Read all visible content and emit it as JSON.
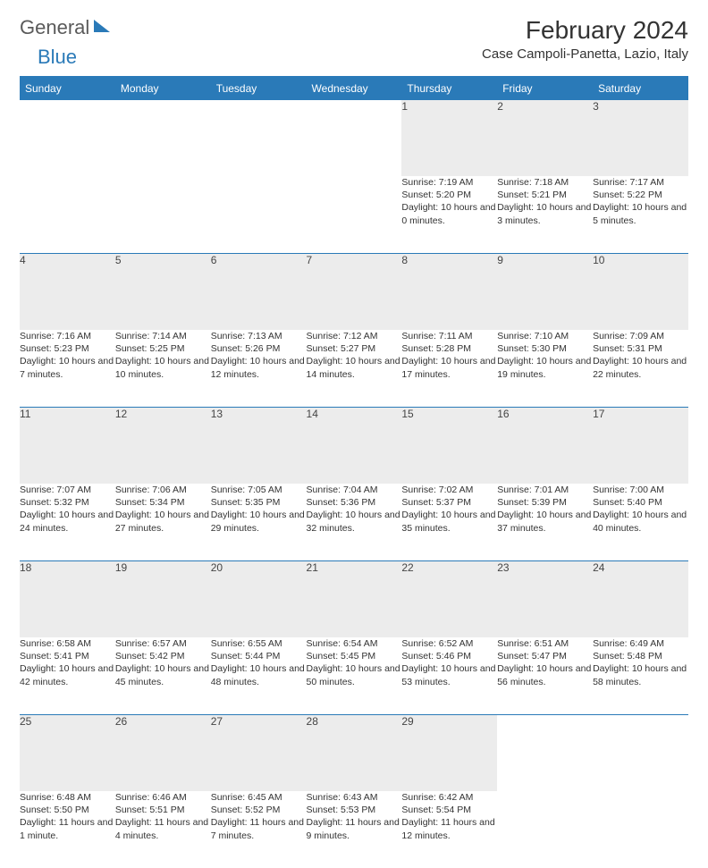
{
  "brand": {
    "part1": "General",
    "part2": "Blue"
  },
  "title": "February 2024",
  "location": "Case Campoli-Panetta, Lazio, Italy",
  "colors": {
    "accent": "#2a7ab8",
    "header_bg": "#2a7ab8",
    "header_text": "#ffffff",
    "daynum_bg": "#ececec",
    "text": "#333333",
    "background": "#ffffff"
  },
  "dow": [
    "Sunday",
    "Monday",
    "Tuesday",
    "Wednesday",
    "Thursday",
    "Friday",
    "Saturday"
  ],
  "weeks": [
    [
      null,
      null,
      null,
      null,
      {
        "n": "1",
        "sr": "7:19 AM",
        "ss": "5:20 PM",
        "dl": "10 hours and 0 minutes."
      },
      {
        "n": "2",
        "sr": "7:18 AM",
        "ss": "5:21 PM",
        "dl": "10 hours and 3 minutes."
      },
      {
        "n": "3",
        "sr": "7:17 AM",
        "ss": "5:22 PM",
        "dl": "10 hours and 5 minutes."
      }
    ],
    [
      {
        "n": "4",
        "sr": "7:16 AM",
        "ss": "5:23 PM",
        "dl": "10 hours and 7 minutes."
      },
      {
        "n": "5",
        "sr": "7:14 AM",
        "ss": "5:25 PM",
        "dl": "10 hours and 10 minutes."
      },
      {
        "n": "6",
        "sr": "7:13 AM",
        "ss": "5:26 PM",
        "dl": "10 hours and 12 minutes."
      },
      {
        "n": "7",
        "sr": "7:12 AM",
        "ss": "5:27 PM",
        "dl": "10 hours and 14 minutes."
      },
      {
        "n": "8",
        "sr": "7:11 AM",
        "ss": "5:28 PM",
        "dl": "10 hours and 17 minutes."
      },
      {
        "n": "9",
        "sr": "7:10 AM",
        "ss": "5:30 PM",
        "dl": "10 hours and 19 minutes."
      },
      {
        "n": "10",
        "sr": "7:09 AM",
        "ss": "5:31 PM",
        "dl": "10 hours and 22 minutes."
      }
    ],
    [
      {
        "n": "11",
        "sr": "7:07 AM",
        "ss": "5:32 PM",
        "dl": "10 hours and 24 minutes."
      },
      {
        "n": "12",
        "sr": "7:06 AM",
        "ss": "5:34 PM",
        "dl": "10 hours and 27 minutes."
      },
      {
        "n": "13",
        "sr": "7:05 AM",
        "ss": "5:35 PM",
        "dl": "10 hours and 29 minutes."
      },
      {
        "n": "14",
        "sr": "7:04 AM",
        "ss": "5:36 PM",
        "dl": "10 hours and 32 minutes."
      },
      {
        "n": "15",
        "sr": "7:02 AM",
        "ss": "5:37 PM",
        "dl": "10 hours and 35 minutes."
      },
      {
        "n": "16",
        "sr": "7:01 AM",
        "ss": "5:39 PM",
        "dl": "10 hours and 37 minutes."
      },
      {
        "n": "17",
        "sr": "7:00 AM",
        "ss": "5:40 PM",
        "dl": "10 hours and 40 minutes."
      }
    ],
    [
      {
        "n": "18",
        "sr": "6:58 AM",
        "ss": "5:41 PM",
        "dl": "10 hours and 42 minutes."
      },
      {
        "n": "19",
        "sr": "6:57 AM",
        "ss": "5:42 PM",
        "dl": "10 hours and 45 minutes."
      },
      {
        "n": "20",
        "sr": "6:55 AM",
        "ss": "5:44 PM",
        "dl": "10 hours and 48 minutes."
      },
      {
        "n": "21",
        "sr": "6:54 AM",
        "ss": "5:45 PM",
        "dl": "10 hours and 50 minutes."
      },
      {
        "n": "22",
        "sr": "6:52 AM",
        "ss": "5:46 PM",
        "dl": "10 hours and 53 minutes."
      },
      {
        "n": "23",
        "sr": "6:51 AM",
        "ss": "5:47 PM",
        "dl": "10 hours and 56 minutes."
      },
      {
        "n": "24",
        "sr": "6:49 AM",
        "ss": "5:48 PM",
        "dl": "10 hours and 58 minutes."
      }
    ],
    [
      {
        "n": "25",
        "sr": "6:48 AM",
        "ss": "5:50 PM",
        "dl": "11 hours and 1 minute."
      },
      {
        "n": "26",
        "sr": "6:46 AM",
        "ss": "5:51 PM",
        "dl": "11 hours and 4 minutes."
      },
      {
        "n": "27",
        "sr": "6:45 AM",
        "ss": "5:52 PM",
        "dl": "11 hours and 7 minutes."
      },
      {
        "n": "28",
        "sr": "6:43 AM",
        "ss": "5:53 PM",
        "dl": "11 hours and 9 minutes."
      },
      {
        "n": "29",
        "sr": "6:42 AM",
        "ss": "5:54 PM",
        "dl": "11 hours and 12 minutes."
      },
      null,
      null
    ]
  ],
  "labels": {
    "sunrise": "Sunrise: ",
    "sunset": "Sunset: ",
    "daylight": "Daylight: "
  }
}
